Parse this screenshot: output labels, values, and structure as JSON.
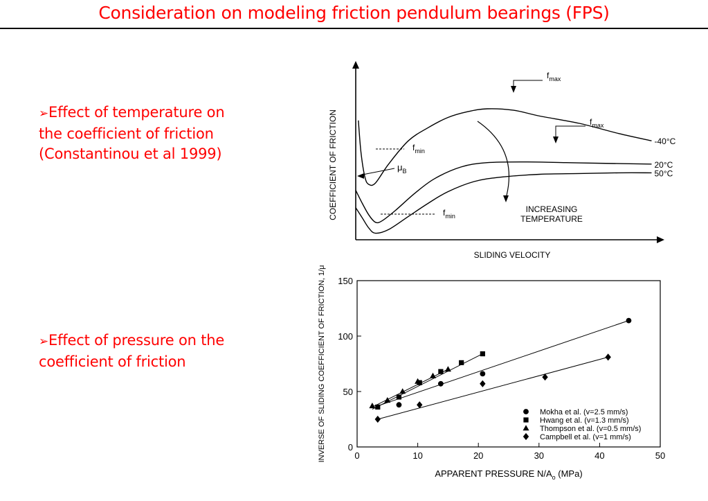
{
  "slide": {
    "title": "Consideration on modeling friction pendulum bearings (FPS)"
  },
  "bullets": [
    {
      "marker": "Ø",
      "lines": [
        "Effect of temperature on",
        "the coefficient of friction",
        "(Constantinou et al 1999)"
      ]
    },
    {
      "marker": "Ø",
      "lines": [
        "Effect of pressure on the",
        "coefficient of friction"
      ]
    }
  ],
  "chart_data": [
    {
      "type": "line",
      "xlabel": "SLIDING VELOCITY",
      "ylabel": "COEFFICIENT OF FRICTION",
      "grid": false,
      "series": [
        {
          "name": "-40°C",
          "points": [
            [
              0.2,
              8.2
            ],
            [
              0.4,
              6
            ],
            [
              0.7,
              4.3
            ],
            [
              1,
              3.8
            ],
            [
              1.5,
              3.9
            ],
            [
              2.5,
              5.2
            ],
            [
              4,
              6.8
            ],
            [
              5.5,
              7.7
            ],
            [
              7,
              8.4
            ],
            [
              8.5,
              8.8
            ],
            [
              10,
              9
            ],
            [
              12,
              8.9
            ],
            [
              14,
              8.5
            ],
            [
              17,
              8
            ],
            [
              20,
              7.3
            ],
            [
              22.5,
              6.8
            ]
          ]
        },
        {
          "name": "20°C",
          "points": [
            [
              0,
              3.4
            ],
            [
              0.5,
              2.5
            ],
            [
              1,
              1.7
            ],
            [
              1.5,
              1.2
            ],
            [
              2,
              1.3
            ],
            [
              3,
              2
            ],
            [
              4.5,
              3.2
            ],
            [
              6,
              4.2
            ],
            [
              8,
              5
            ],
            [
              10,
              5.3
            ],
            [
              13,
              5.35
            ],
            [
              16,
              5.3
            ],
            [
              19,
              5.25
            ],
            [
              22.5,
              5.2
            ]
          ]
        },
        {
          "name": "50°C",
          "points": [
            [
              0,
              2.2
            ],
            [
              0.5,
              1.5
            ],
            [
              1,
              0.8
            ],
            [
              1.5,
              0.45
            ],
            [
              2.5,
              0.7
            ],
            [
              4,
              1.6
            ],
            [
              5.5,
              2.5
            ],
            [
              7,
              3.3
            ],
            [
              9,
              4
            ],
            [
              11,
              4.3
            ],
            [
              14,
              4.5
            ],
            [
              17,
              4.55
            ],
            [
              20,
              4.6
            ],
            [
              22.5,
              4.6
            ]
          ]
        }
      ],
      "annotations": [
        {
          "text": "fmax",
          "base": "f",
          "sub": "max",
          "target_series": "-40°C"
        },
        {
          "text": "fmax",
          "base": "f",
          "sub": "max",
          "target_series": "20°C"
        },
        {
          "text": "fmin",
          "base": "f",
          "sub": "min",
          "target_series": "-40°C"
        },
        {
          "text": "fmin",
          "base": "f",
          "sub": "min",
          "target_series": "50°C"
        },
        {
          "text": "μB",
          "base": "μ",
          "sub": "B"
        },
        {
          "text_lines": [
            "INCREASING",
            "TEMPERATURE"
          ]
        }
      ]
    },
    {
      "type": "scatter",
      "xlabel": {
        "base": "APPARENT PRESSURE  N/A",
        "sub": "o",
        "tail": " (MPa)"
      },
      "ylabel": "INVERSE OF SLIDING COEFFICIENT OF FRICTION, 1/μ",
      "xlim": [
        0,
        50
      ],
      "ylim": [
        0,
        150
      ],
      "x_ticks": [
        0,
        10,
        20,
        30,
        40,
        50
      ],
      "y_ticks": [
        0,
        50,
        100,
        150
      ],
      "legend_position": "bottom-right",
      "series": [
        {
          "name": "Mokha et al. (v=2.5 mm/s)",
          "marker": "circle",
          "points": [
            [
              6.9,
              38
            ],
            [
              13.8,
              57
            ],
            [
              20.7,
              66
            ],
            [
              44.8,
              114
            ]
          ],
          "fit": [
            [
              3.4,
              37
            ],
            [
              44.8,
              114
            ]
          ]
        },
        {
          "name": "Hwang et al. (v=1.3 mm/s)",
          "marker": "square",
          "points": [
            [
              3.4,
              36
            ],
            [
              6.9,
              45
            ],
            [
              10.3,
              58
            ],
            [
              13.8,
              68
            ],
            [
              17.2,
              76
            ],
            [
              20.7,
              84
            ]
          ],
          "fit": [
            [
              2.5,
              34
            ],
            [
              20.7,
              84
            ]
          ]
        },
        {
          "name": "Thompson et al. (v=0.5 mm/s)",
          "marker": "triangle",
          "points": [
            [
              2.5,
              37
            ],
            [
              5,
              42
            ],
            [
              7.5,
              50
            ],
            [
              10,
              59
            ],
            [
              12.5,
              64
            ],
            [
              15,
              70
            ]
          ],
          "fit": [
            [
              2.5,
              36
            ],
            [
              15,
              70
            ]
          ]
        },
        {
          "name": "Campbell et al. (v=1 mm/s)",
          "marker": "diamond",
          "points": [
            [
              3.4,
              25
            ],
            [
              10.3,
              38
            ],
            [
              20.7,
              57
            ],
            [
              31,
              63
            ],
            [
              41.4,
              81
            ]
          ],
          "fit": [
            [
              3.4,
              25
            ],
            [
              41.4,
              81
            ]
          ]
        }
      ]
    }
  ]
}
